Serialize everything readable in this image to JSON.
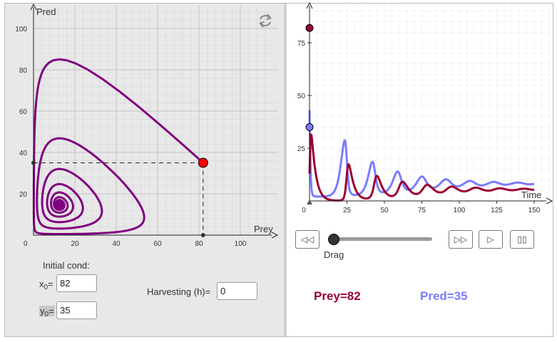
{
  "phase_plot": {
    "x_axis_label": "Prey",
    "y_axis_label": "Pred",
    "x_ticks": [
      "0",
      "20",
      "40",
      "60",
      "80",
      "100"
    ],
    "y_ticks": [
      "20",
      "40",
      "60",
      "80",
      "100"
    ],
    "current_point": {
      "prey": 82,
      "pred": 35
    },
    "point_color": "#ff0000",
    "curve_color": "#800080"
  },
  "time_plot": {
    "x_axis_label": "Time",
    "x_ticks": [
      "0",
      "25",
      "50",
      "75",
      "100",
      "125",
      "150"
    ],
    "y_ticks": [
      "25",
      "50",
      "75"
    ],
    "prey_color": "#990033",
    "pred_color": "#7b7bff"
  },
  "controls": {
    "rewind_icon": "rewind-icon",
    "fast_forward_icon": "fast-forward-icon",
    "play_icon": "play-icon",
    "pause_icon": "pause-icon",
    "refresh_icon": "refresh-icon",
    "slider_label": "Drag",
    "slider_value": 0
  },
  "inputs": {
    "title": "Initial cond:",
    "x0_label": "x",
    "x0_sub": "0",
    "x0_eq": "=",
    "x0_value": "82",
    "y0_label": "y",
    "y0_sub": "0",
    "y0_eq": "=",
    "y0_value": "35",
    "harvest_label": "Harvesting (h)=",
    "harvest_value": "0"
  },
  "readouts": {
    "prey": "Prey=82",
    "pred": "Pred=35"
  }
}
